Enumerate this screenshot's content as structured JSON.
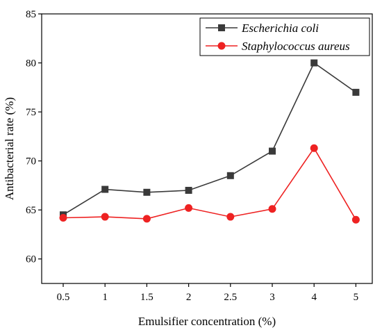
{
  "chart_data": {
    "type": "line",
    "categories": [
      "0.5",
      "1",
      "1.5",
      "2",
      "2.5",
      "3",
      "4",
      "5"
    ],
    "series": [
      {
        "name": "Escherichia coli",
        "color": "#3a3a3a",
        "marker": "square",
        "values": [
          64.5,
          67.1,
          66.8,
          67.0,
          68.5,
          71.0,
          80.0,
          77.0
        ]
      },
      {
        "name": "Staphylococcus aureus",
        "color": "#ee2222",
        "marker": "circle",
        "values": [
          64.2,
          64.3,
          64.1,
          65.2,
          64.3,
          65.1,
          71.3,
          64.0
        ]
      }
    ],
    "xlabel": "Emulsifier concentration (%)",
    "ylabel": "Antibacterial rate (%)",
    "ylim": [
      57.5,
      85
    ],
    "yticks": [
      "60",
      "65",
      "70",
      "75",
      "80",
      "85"
    ],
    "grid": false,
    "legend_position": "top-right"
  }
}
